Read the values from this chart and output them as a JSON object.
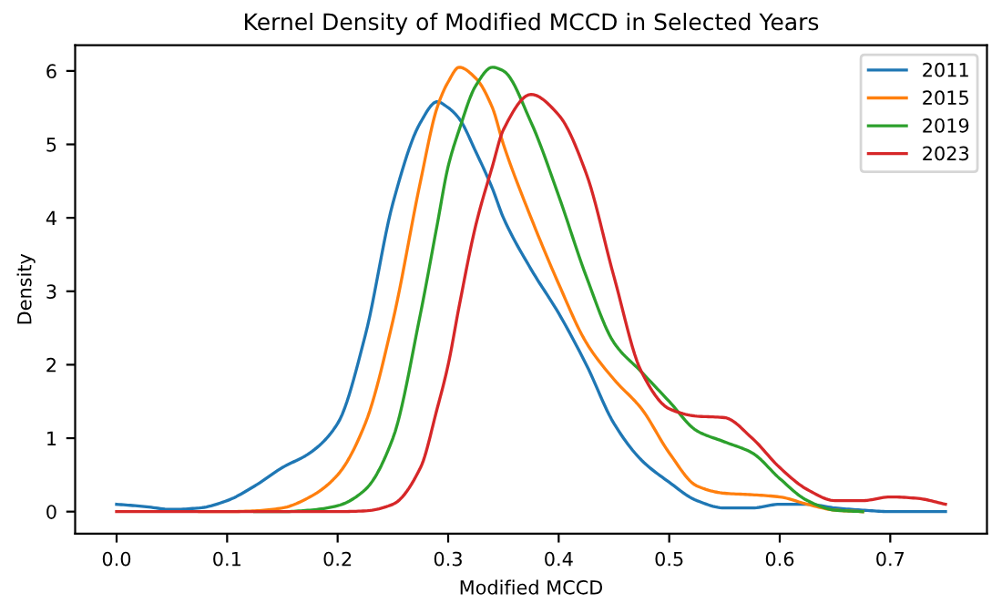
{
  "chart_data": {
    "type": "line",
    "title": "Kernel Density of Modified MCCD in Selected Years",
    "xlabel": "Modified MCCD",
    "ylabel": "Density",
    "x": [
      0,
      0.025,
      0.05,
      0.075,
      0.1,
      0.125,
      0.15,
      0.175,
      0.2,
      0.225,
      0.25,
      0.275,
      0.29,
      0.3,
      0.31,
      0.325,
      0.34,
      0.35,
      0.375,
      0.4,
      0.425,
      0.45,
      0.475,
      0.5,
      0.525,
      0.55,
      0.575,
      0.6,
      0.625,
      0.65,
      0.675,
      0.7,
      0.725,
      0.75
    ],
    "series": [
      {
        "name": "2011",
        "color": "#1f77b4",
        "values": [
          0.1,
          0.07,
          0.03,
          0.05,
          0.15,
          0.35,
          0.6,
          0.8,
          1.2,
          2.4,
          4.2,
          5.3,
          5.58,
          5.5,
          5.35,
          4.9,
          4.4,
          4.0,
          3.3,
          2.7,
          2.0,
          1.2,
          0.7,
          0.4,
          0.15,
          0.05,
          0.05,
          0.1,
          0.1,
          0.05,
          0.02,
          0,
          0,
          0
        ]
      },
      {
        "name": "2015",
        "color": "#ff7f0e",
        "values": [
          null,
          null,
          null,
          0,
          0,
          0.01,
          0.05,
          0.2,
          0.5,
          1.2,
          2.6,
          4.5,
          5.5,
          5.85,
          6.05,
          5.9,
          5.5,
          5.0,
          4.0,
          3.1,
          2.3,
          1.8,
          1.4,
          0.8,
          0.35,
          0.25,
          0.23,
          0.2,
          0.1,
          0.02,
          0,
          null,
          null,
          null
        ]
      },
      {
        "name": "2019",
        "color": "#2ca02c",
        "values": [
          null,
          null,
          null,
          null,
          null,
          0,
          0,
          0.02,
          0.08,
          0.3,
          1.0,
          2.7,
          3.9,
          4.7,
          5.2,
          5.8,
          6.05,
          6.0,
          5.3,
          4.3,
          3.2,
          2.3,
          1.9,
          1.5,
          1.1,
          0.95,
          0.8,
          0.45,
          0.15,
          0.02,
          0,
          null,
          null,
          null
        ]
      },
      {
        "name": "2023",
        "color": "#d62728",
        "values": [
          0,
          0,
          0,
          0,
          0,
          0,
          0,
          0,
          0,
          0.01,
          0.1,
          0.6,
          1.4,
          2.0,
          2.8,
          3.9,
          4.7,
          5.2,
          5.68,
          5.4,
          4.6,
          3.2,
          1.9,
          1.4,
          1.3,
          1.28,
          1.0,
          0.6,
          0.3,
          0.15,
          0.15,
          0.2,
          0.18,
          0.1
        ]
      }
    ],
    "xlim": [
      -0.0375,
      0.7875
    ],
    "ylim": [
      -0.3,
      6.35
    ],
    "xticks": [
      {
        "value": 0,
        "label": "0.0"
      },
      0.1,
      0.2,
      0.3,
      0.4,
      0.5,
      0.6,
      0.7
    ],
    "yticks": [
      0,
      1,
      2,
      3,
      4,
      5,
      6
    ],
    "legend": "top right",
    "grid": false
  }
}
